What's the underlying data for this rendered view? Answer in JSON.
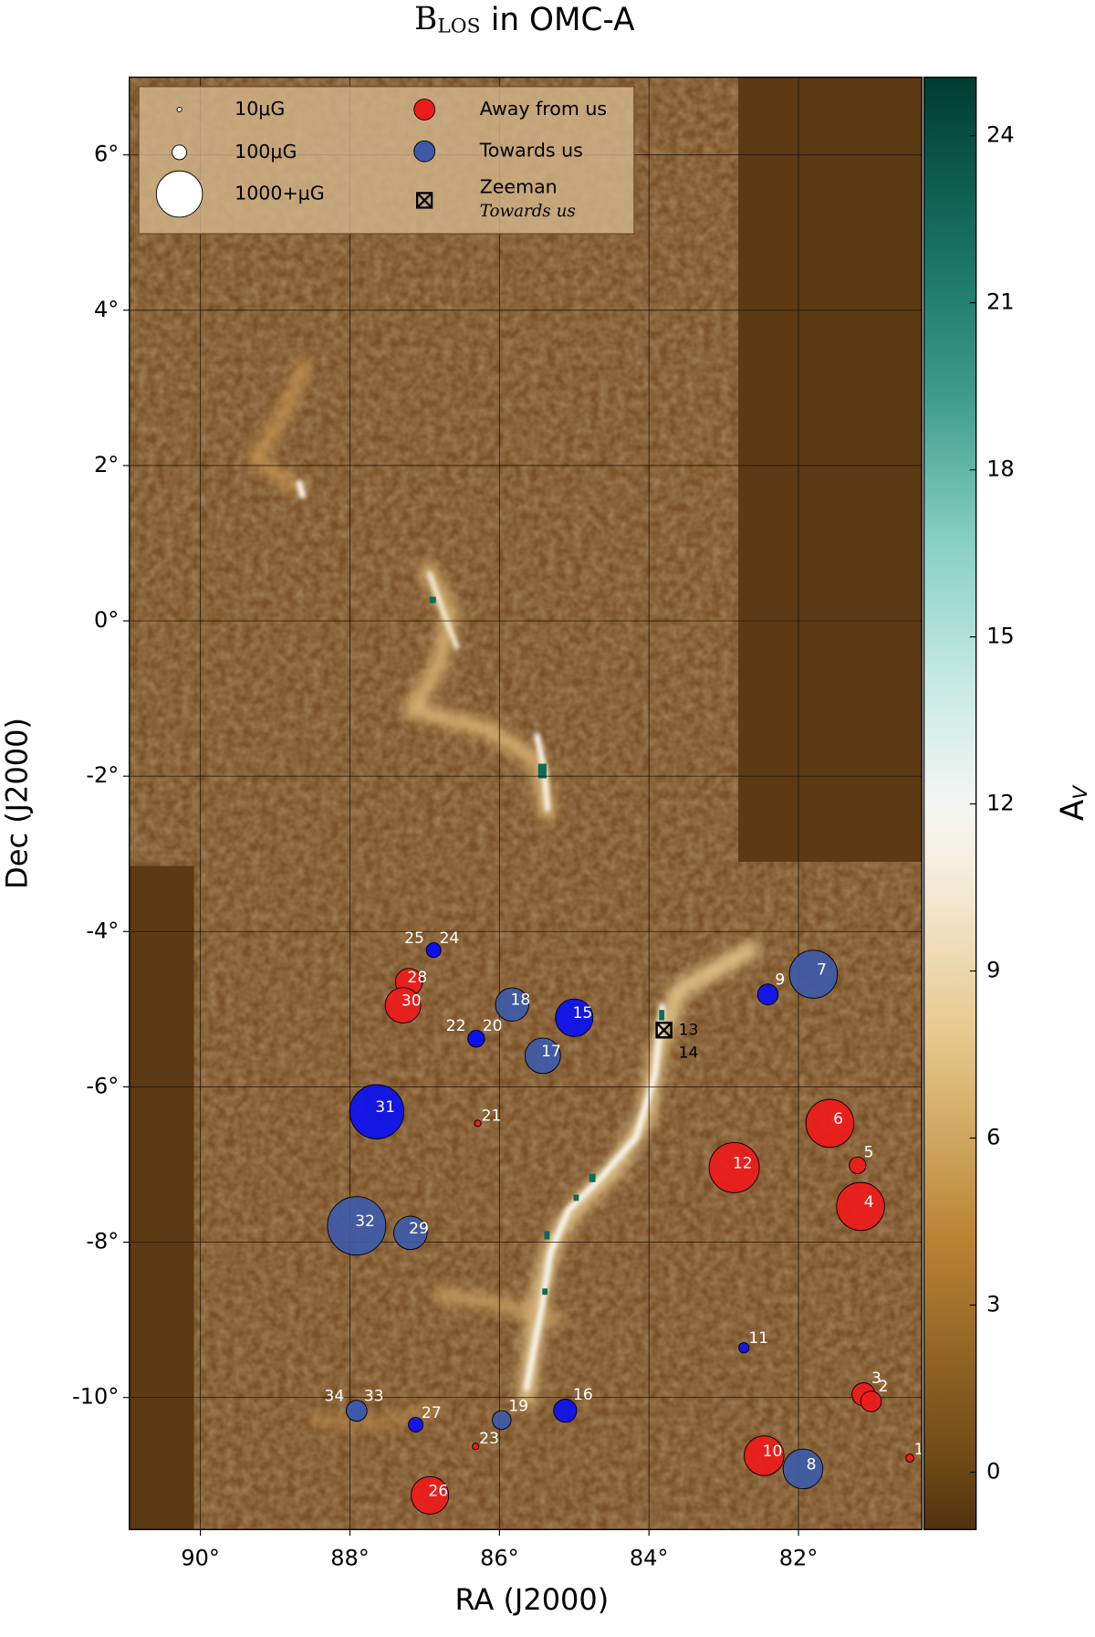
{
  "chart_data": {
    "type": "scatter",
    "title": "B",
    "title_subscript": "LOS",
    "title_suffix": "in OMC-A",
    "x_label": "RA (J2000)",
    "y_label": "Dec (J2000)",
    "xlim": [
      90.95,
      80.35
    ],
    "ylim": [
      -11.7,
      7.0
    ],
    "xticks": [
      {
        "value": 90,
        "label": "90°"
      },
      {
        "value": 88,
        "label": "88°"
      },
      {
        "value": 86,
        "label": "86°"
      },
      {
        "value": 84,
        "label": "84°"
      },
      {
        "value": 82,
        "label": "82°"
      }
    ],
    "yticks": [
      {
        "value": 6,
        "label": "6°"
      },
      {
        "value": 4,
        "label": "4°"
      },
      {
        "value": 2,
        "label": "2°"
      },
      {
        "value": 0,
        "label": "0°"
      },
      {
        "value": -2,
        "label": "-2°"
      },
      {
        "value": -4,
        "label": "-4°"
      },
      {
        "value": -6,
        "label": "-6°"
      },
      {
        "value": -8,
        "label": "-8°"
      },
      {
        "value": -10,
        "label": "-10°"
      }
    ],
    "grid": true,
    "legend": "upper left",
    "size_legend": [
      {
        "value": 10,
        "label": "10μG"
      },
      {
        "value": 100,
        "label": "100μG"
      },
      {
        "value": 1000,
        "label": "1000+μG"
      }
    ],
    "colorbar_label": "A",
    "colorbar_label_subscript": "V",
    "clim": [
      -1.03,
      25.05
    ],
    "cticks": [
      0,
      3,
      6,
      9,
      12,
      15,
      18,
      21,
      24
    ],
    "series": [
      {
        "name": "Away from us",
        "color": "#ee1b1b",
        "marker": "circle",
        "labels": [
          "1",
          "3",
          "2",
          "4",
          "5",
          "6",
          "10",
          "12",
          "21",
          "23",
          "26",
          "28",
          "30"
        ],
        "x": [
          80.51,
          81.13,
          81.03,
          81.17,
          81.21,
          81.58,
          82.46,
          82.86,
          86.29,
          86.32,
          86.93,
          87.21,
          87.29
        ],
        "y": [
          -10.78,
          -9.96,
          -10.05,
          -7.54,
          -7.01,
          -6.47,
          -10.75,
          -7.04,
          -6.47,
          -10.63,
          -11.26,
          -4.65,
          -4.95
        ],
        "sizes": [
          30,
          250,
          200,
          1080,
          130,
          1080,
          740,
          1180,
          20,
          20,
          660,
          345,
          590
        ]
      },
      {
        "name": "Towards us",
        "color": "#3d5aa8",
        "marker": "circle",
        "labels": [
          "7",
          "8",
          "9",
          "11",
          "15",
          "16",
          "17",
          "18",
          "19",
          "20",
          "22",
          "24",
          "25",
          "27",
          "29",
          "31",
          "32",
          "33",
          "34"
        ],
        "x": [
          81.8,
          81.94,
          82.41,
          82.73,
          85.0,
          85.12,
          85.42,
          85.83,
          85.97,
          86.31,
          86.31,
          86.88,
          86.88,
          87.12,
          87.19,
          87.64,
          87.91,
          87.91,
          87.91
        ],
        "y": [
          -4.55,
          -10.92,
          -4.81,
          -9.36,
          -5.11,
          -10.17,
          -5.6,
          -4.94,
          -10.29,
          -5.38,
          -5.38,
          -4.24,
          -4.24,
          -10.35,
          -7.88,
          -6.32,
          -7.79,
          -10.17,
          -10.17
        ],
        "sizes": [
          1080,
          740,
          200,
          50,
          660,
          250,
          590,
          520,
          165,
          130,
          130,
          100,
          100,
          100,
          520,
          1380,
          1600,
          200,
          200
        ],
        "point_colors": [
          "#3d5aa8",
          "#3d5aa8",
          "#0a10f0",
          "#0a10f0",
          "#0a10f0",
          "#0a10f0",
          "#3d5aa8",
          "#3d5aa8",
          "#3d5aa8",
          "#0a10f0",
          "#0a10f0",
          "#0a10f0",
          "#0a10f0",
          "#0a10f0",
          "#3d5aa8",
          "#0a10f0",
          "#3d5aa8",
          "#3d5aa8",
          "#3d5aa8"
        ]
      },
      {
        "name": "Zeeman",
        "legend_note": "Towards us",
        "color": "#000000",
        "marker": "square",
        "labels": [
          "13",
          "14"
        ],
        "x": [
          83.8,
          83.8
        ],
        "y": [
          -5.27,
          -5.27
        ]
      }
    ]
  }
}
